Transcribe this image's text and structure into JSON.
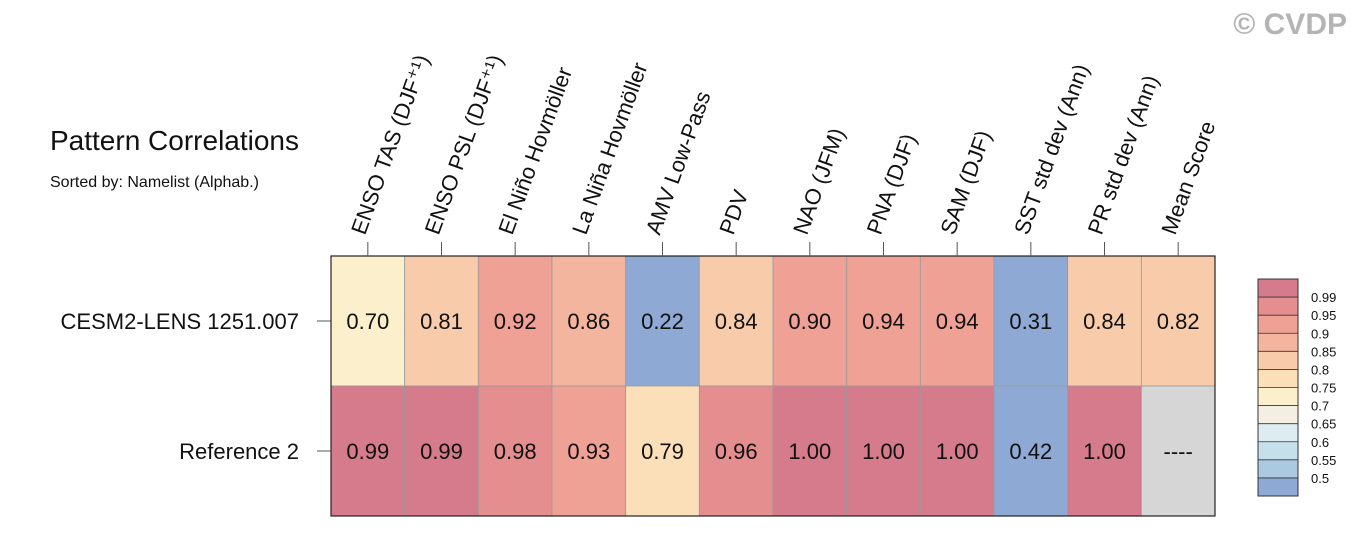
{
  "title": "Pattern Correlations",
  "subtitle": "Sorted by: Namelist (Alphab.)",
  "watermark": "© CVDP",
  "chart_data": {
    "type": "heatmap",
    "title": "Pattern Correlations",
    "subtitle": "Sorted by: Namelist (Alphab.)",
    "columns": [
      "ENSO TAS (DJF⁺¹)",
      "ENSO PSL (DJF⁺¹)",
      "El Niño Hovmöller",
      "La Niña Hovmöller",
      "AMV Low-Pass",
      "PDV",
      "NAO (JFM)",
      "PNA (DJF)",
      "SAM (DJF)",
      "SST std dev (Ann)",
      "PR std dev (Ann)",
      "Mean Score"
    ],
    "rows": [
      {
        "name": "CESM2-LENS 1251.007",
        "labels": [
          "0.70",
          "0.81",
          "0.92",
          "0.86",
          "0.22",
          "0.84",
          "0.90",
          "0.94",
          "0.94",
          "0.31",
          "0.84",
          "0.82"
        ],
        "values": [
          0.7,
          0.81,
          0.92,
          0.86,
          0.22,
          0.84,
          0.9,
          0.94,
          0.94,
          0.31,
          0.84,
          0.82
        ]
      },
      {
        "name": "Reference 2",
        "labels": [
          "0.99",
          "0.99",
          "0.98",
          "0.93",
          "0.79",
          "0.96",
          "1.00",
          "1.00",
          "1.00",
          "0.42",
          "1.00",
          "----"
        ],
        "values": [
          0.99,
          0.99,
          0.98,
          0.93,
          0.79,
          0.96,
          1.0,
          1.0,
          1.0,
          0.42,
          1.0,
          null
        ]
      }
    ],
    "colorbar": {
      "labels": [
        "0.99",
        "0.95",
        "0.9",
        "0.85",
        "0.8",
        "0.75",
        "0.7",
        "0.65",
        "0.6",
        "0.55",
        "0.5"
      ],
      "colors": [
        "#d57b8c",
        "#e48e8f",
        "#eea194",
        "#f4b59e",
        "#f8ccaa",
        "#fbdfb9",
        "#fcefcc",
        "#f3f0e3",
        "#dcecf0",
        "#c5dfeb",
        "#acc9e2",
        "#8ea9d4"
      ],
      "missing_color": "#d6d6d6"
    }
  }
}
